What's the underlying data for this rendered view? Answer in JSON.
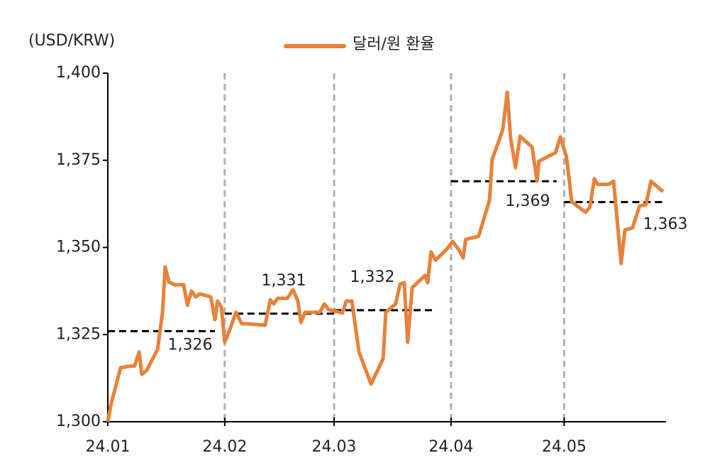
{
  "chart_data": {
    "type": "line",
    "y_axis_label": "(USD/KRW)",
    "xlim": [
      0,
      148
    ],
    "xticks": [
      {
        "value": 0,
        "label": "24.01"
      },
      {
        "value": 31,
        "label": "24.02"
      },
      {
        "value": 60,
        "label": "24.03"
      },
      {
        "value": 91,
        "label": "24.04"
      },
      {
        "value": 121,
        "label": "24.05"
      }
    ],
    "ylim": [
      1300,
      1400
    ],
    "yticks": [
      {
        "value": 1300,
        "label": "1,300"
      },
      {
        "value": 1325,
        "label": "1,325"
      },
      {
        "value": 1350,
        "label": "1,350"
      },
      {
        "value": 1375,
        "label": "1,375"
      },
      {
        "value": 1400,
        "label": "1,400"
      }
    ],
    "x_grid": true,
    "legend": "top",
    "series": [
      {
        "name": "달러/원 환율",
        "color": "#e8813a",
        "x": [
          0,
          0.9,
          3.4,
          6.2,
          7.1,
          8.3,
          9.0,
          10.3,
          13.2,
          14.5,
          15.2,
          16.2,
          17.7,
          20.1,
          21.1,
          22.2,
          23.3,
          24.4,
          27.3,
          28.4,
          29.1,
          30.1,
          31.0,
          32.2,
          34.0,
          35.5,
          36.9,
          39.3,
          41.7,
          43.1,
          44.0,
          45.0,
          47.6,
          49.1,
          50.4,
          51.2,
          52.3,
          56.2,
          57.4,
          58.5,
          62.2,
          63.2,
          64.7,
          66.6,
          69.8,
          73.0,
          73.7,
          76.3,
          77.5,
          78.6,
          79.5,
          80.7,
          82.7,
          84.1,
          84.8,
          85.7,
          86.9,
          89.7,
          91.4,
          93.1,
          94.2,
          94.9,
          98.3,
          101.2,
          101.9,
          104.7,
          105.9,
          106.8,
          108.1,
          109.3,
          112.5,
          113.8,
          114.3,
          116.2,
          118.7,
          120.0,
          121.6,
          123.0,
          125.4,
          126.7,
          127.8,
          129.0,
          129.9,
          132.8,
          134.1,
          136.1,
          137.1,
          139.1,
          141.0,
          142.7,
          144.0,
          147.2
        ],
        "values": [
          1300,
          1305.3,
          1315.5,
          1316,
          1316,
          1320,
          1313.6,
          1314.7,
          1320.8,
          1331.4,
          1344.4,
          1340.1,
          1339.3,
          1339.3,
          1333.4,
          1337.5,
          1335.8,
          1336.7,
          1335.8,
          1329.3,
          1334.6,
          1333,
          1322.8,
          1326,
          1331.4,
          1328.1,
          1328.1,
          1327.9,
          1327.7,
          1335,
          1333.8,
          1335.4,
          1335.4,
          1337.9,
          1334.6,
          1328.5,
          1331.4,
          1331.4,
          1333.8,
          1332.2,
          1331.2,
          1334.6,
          1334.6,
          1320,
          1310.8,
          1318.1,
          1331.4,
          1333.8,
          1339.5,
          1339.9,
          1322.8,
          1338.5,
          1340.5,
          1342,
          1339.9,
          1348.7,
          1346.4,
          1349.3,
          1351.7,
          1349.3,
          1347,
          1352.3,
          1353.2,
          1363.5,
          1375.2,
          1383.7,
          1394.5,
          1381.3,
          1372.9,
          1381.9,
          1378.8,
          1369,
          1374.7,
          1375.8,
          1377.2,
          1381.7,
          1376,
          1363.1,
          1361.1,
          1360.1,
          1361.5,
          1369.7,
          1368.1,
          1368.1,
          1369,
          1345.4,
          1355,
          1355.6,
          1361.9,
          1362.3,
          1369,
          1366
        ]
      }
    ],
    "averages": [
      {
        "value": 1326,
        "label": "1,326",
        "start": 0,
        "end": 28.4
      },
      {
        "value": 1331,
        "label": "1,331",
        "start": 31,
        "end": 60
      },
      {
        "value": 1332,
        "label": "1,332",
        "start": 60,
        "end": 86.5
      },
      {
        "value": 1369,
        "label": "1,369",
        "start": 91,
        "end": 119
      },
      {
        "value": 1363,
        "label": "1,363",
        "start": 121,
        "end": 147.6
      }
    ]
  }
}
